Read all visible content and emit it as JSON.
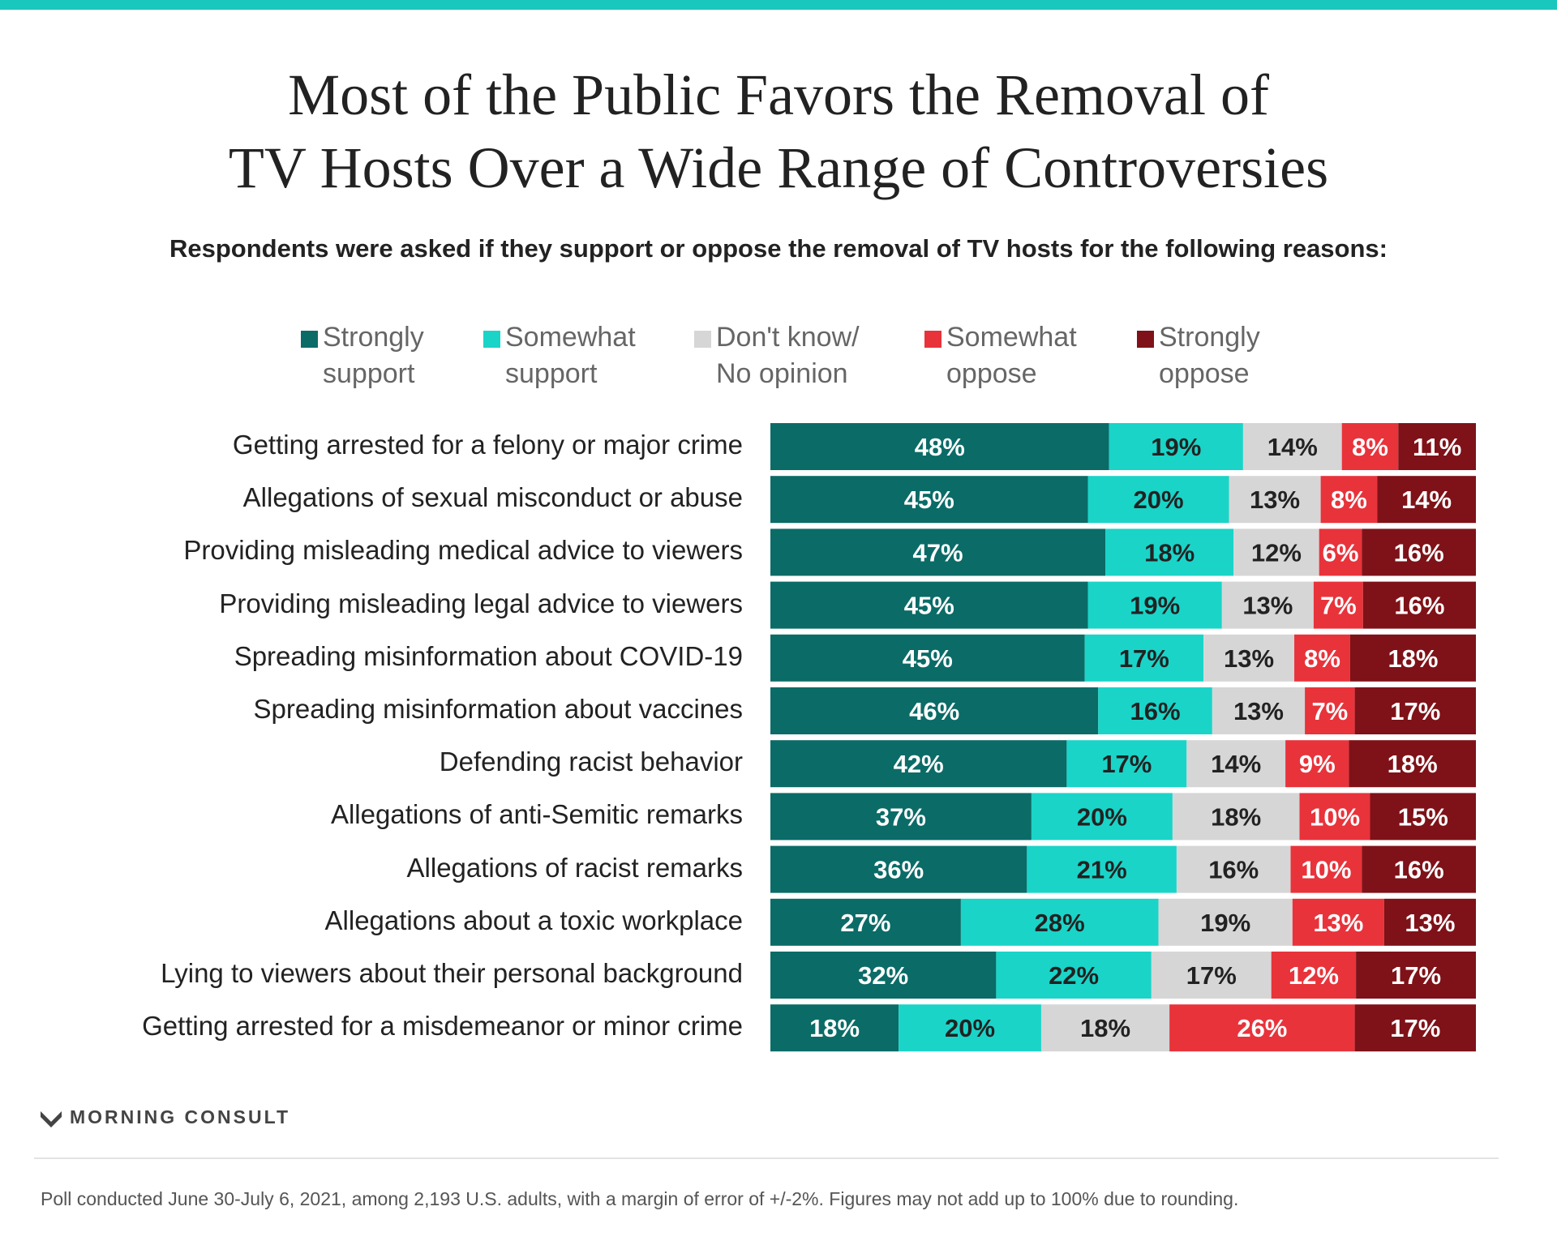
{
  "title": {
    "line1": "Most of the Public Favors the Removal of",
    "line2": "TV Hosts Over a Wide Range of Controversies"
  },
  "subtitle": "Respondents were asked if they support or oppose the removal of TV hosts for the following reasons:",
  "legend": [
    {
      "line1": "Strongly",
      "line2": "support",
      "color": "#0b6b67"
    },
    {
      "line1": "Somewhat",
      "line2": "support",
      "color": "#1ad4c8"
    },
    {
      "line1": "Don't know/",
      "line2": "No opinion",
      "color": "#d6d6d6"
    },
    {
      "line1": "Somewhat",
      "line2": "oppose",
      "color": "#e8333b"
    },
    {
      "line1": "Strongly",
      "line2": "oppose",
      "color": "#7e1218"
    }
  ],
  "chart_data": {
    "type": "bar",
    "orientation": "horizontal",
    "stacked": true,
    "categories": [
      "Getting arrested for a felony or major crime",
      "Allegations of sexual misconduct or abuse",
      "Providing misleading medical advice to viewers",
      "Providing misleading legal advice to viewers",
      "Spreading misinformation about COVID-19",
      "Spreading misinformation about vaccines",
      "Defending racist behavior",
      "Allegations of anti-Semitic remarks",
      "Allegations of racist remarks",
      "Allegations about a toxic workplace",
      "Lying to viewers about their personal background",
      "Getting arrested for a misdemeanor or minor crime"
    ],
    "series": [
      {
        "name": "Strongly support",
        "values": [
          48,
          45,
          47,
          45,
          45,
          46,
          42,
          37,
          36,
          27,
          32,
          18
        ]
      },
      {
        "name": "Somewhat support",
        "values": [
          19,
          20,
          18,
          19,
          17,
          16,
          17,
          20,
          21,
          28,
          22,
          20
        ]
      },
      {
        "name": "Don't know/ No opinion",
        "values": [
          14,
          13,
          12,
          13,
          13,
          13,
          14,
          18,
          16,
          19,
          17,
          18
        ]
      },
      {
        "name": "Somewhat oppose",
        "values": [
          8,
          8,
          6,
          7,
          8,
          7,
          9,
          10,
          10,
          13,
          12,
          26
        ]
      },
      {
        "name": "Strongly oppose",
        "values": [
          11,
          14,
          16,
          16,
          18,
          17,
          18,
          15,
          16,
          13,
          17,
          17
        ]
      }
    ],
    "value_suffix": "%",
    "label_colors": [
      "#ffffff",
      "#222222",
      "#222222",
      "#ffffff",
      "#ffffff"
    ]
  },
  "brand": "MORNING CONSULT",
  "footnote": "Poll conducted June 30-July 6, 2021, among 2,193 U.S. adults, with a margin of error of +/-2%. Figures may not add up to 100% due to rounding."
}
